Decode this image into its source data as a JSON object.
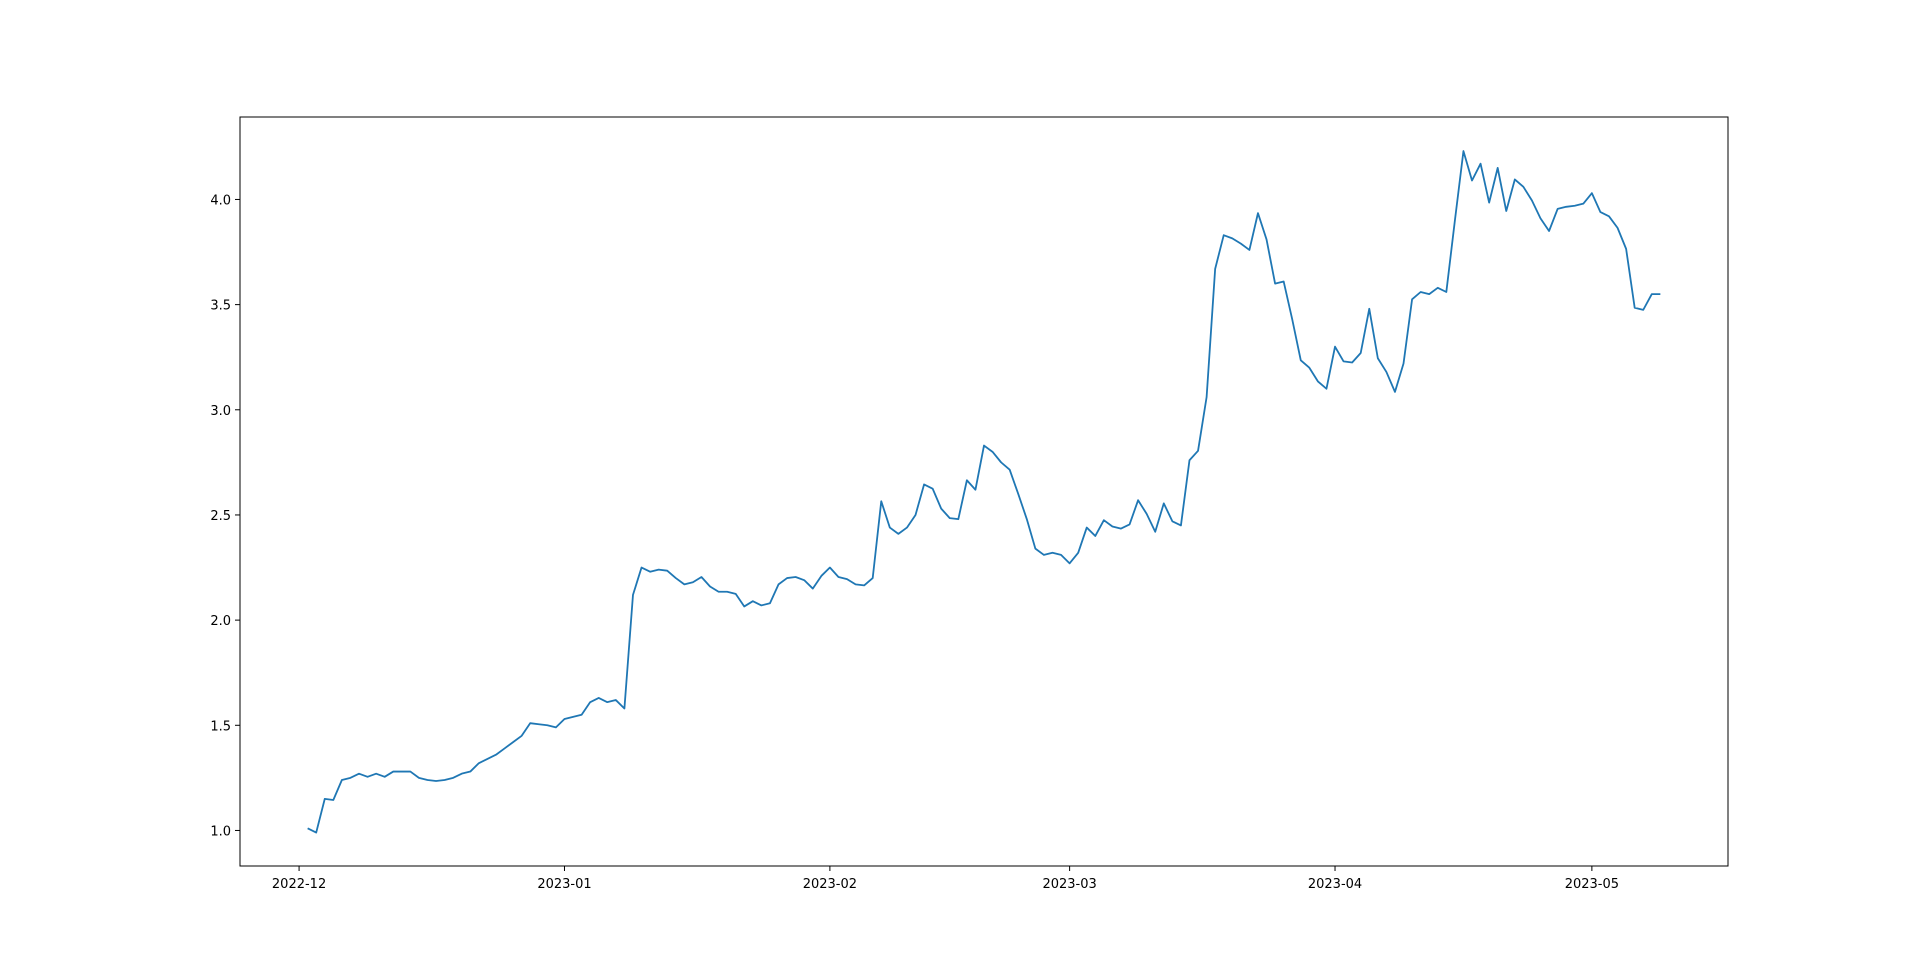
{
  "chart_data": {
    "type": "line",
    "x": [
      19328,
      19329,
      19330,
      19331,
      19332,
      19333,
      19334,
      19335,
      19336,
      19337,
      19338,
      19339,
      19340,
      19341,
      19342,
      19343,
      19344,
      19345,
      19346,
      19347,
      19348,
      19349,
      19350,
      19351,
      19352,
      19353,
      19354,
      19355,
      19356,
      19357,
      19358,
      19359,
      19360,
      19361,
      19362,
      19363,
      19364,
      19365,
      19366,
      19367,
      19368,
      19369,
      19370,
      19371,
      19372,
      19373,
      19374,
      19375,
      19376,
      19377,
      19378,
      19379,
      19380,
      19381,
      19382,
      19383,
      19384,
      19385,
      19386,
      19387,
      19388,
      19389,
      19390,
      19391,
      19392,
      19393,
      19394,
      19395,
      19396,
      19397,
      19398,
      19399,
      19400,
      19401,
      19402,
      19403,
      19404,
      19405,
      19406,
      19407,
      19408,
      19409,
      19410,
      19411,
      19412,
      19413,
      19414,
      19415,
      19416,
      19417,
      19418,
      19419,
      19420,
      19421,
      19422,
      19423,
      19424,
      19425,
      19426,
      19427,
      19428,
      19429,
      19430,
      19431,
      19432,
      19433,
      19434,
      19435,
      19436,
      19437,
      19438,
      19439,
      19440,
      19441,
      19442,
      19443,
      19444,
      19445,
      19446,
      19447,
      19448,
      19449,
      19450,
      19451,
      19452,
      19453,
      19454,
      19455,
      19456,
      19457,
      19458,
      19459,
      19460,
      19461,
      19462,
      19463,
      19464,
      19465,
      19466,
      19467,
      19468,
      19469,
      19470,
      19471,
      19472,
      19473,
      19474,
      19475,
      19476,
      19477,
      19478,
      19479,
      19480,
      19481,
      19482,
      19483,
      19484,
      19485,
      19486
    ],
    "values": [
      1.01,
      0.99,
      1.15,
      1.145,
      1.24,
      1.25,
      1.27,
      1.255,
      1.27,
      1.255,
      1.28,
      1.28,
      1.28,
      1.25,
      1.24,
      1.235,
      1.24,
      1.25,
      1.27,
      1.28,
      1.32,
      1.34,
      1.36,
      1.39,
      1.42,
      1.45,
      1.51,
      1.505,
      1.5,
      1.49,
      1.53,
      1.54,
      1.55,
      1.61,
      1.63,
      1.61,
      1.62,
      1.58,
      2.12,
      2.25,
      2.23,
      2.24,
      2.235,
      2.2,
      2.17,
      2.18,
      2.205,
      2.16,
      2.135,
      2.135,
      2.125,
      2.065,
      2.09,
      2.07,
      2.08,
      2.17,
      2.2,
      2.205,
      2.19,
      2.15,
      2.21,
      2.25,
      2.205,
      2.195,
      2.17,
      2.165,
      2.2,
      2.565,
      2.44,
      2.41,
      2.44,
      2.5,
      2.645,
      2.625,
      2.53,
      2.485,
      2.48,
      2.665,
      2.62,
      2.83,
      2.8,
      2.75,
      2.715,
      2.6,
      2.48,
      2.34,
      2.31,
      2.32,
      2.31,
      2.27,
      2.32,
      2.44,
      2.4,
      2.475,
      2.445,
      2.435,
      2.455,
      2.57,
      2.505,
      2.42,
      2.555,
      2.47,
      2.45,
      2.76,
      2.805,
      3.06,
      3.67,
      3.83,
      3.815,
      3.79,
      3.76,
      3.935,
      3.81,
      3.6,
      3.61,
      3.43,
      3.235,
      3.2,
      3.135,
      3.1,
      3.3,
      3.23,
      3.225,
      3.27,
      3.48,
      3.245,
      3.18,
      3.085,
      3.22,
      3.525,
      3.56,
      3.55,
      3.58,
      3.56,
      3.9,
      4.23,
      4.09,
      4.17,
      3.985,
      4.15,
      3.945,
      4.095,
      4.06,
      3.995,
      3.91,
      3.85,
      3.955,
      3.965,
      3.97,
      3.98,
      4.03,
      3.94,
      3.92,
      3.865,
      3.765,
      3.485,
      3.475,
      3.55,
      3.55
    ],
    "color": "#1f77b4",
    "xlim": [
      19320.1,
      19493.9
    ],
    "xticks": [
      {
        "value": 19327,
        "label": "2022-12"
      },
      {
        "value": 19358,
        "label": "2023-01"
      },
      {
        "value": 19389,
        "label": "2023-02"
      },
      {
        "value": 19417,
        "label": "2023-03"
      },
      {
        "value": 19448,
        "label": "2023-04"
      },
      {
        "value": 19478,
        "label": "2023-05"
      }
    ],
    "ylim": [
      0.831,
      4.392
    ],
    "yticks": [
      {
        "value": 1,
        "label": "1.0"
      },
      {
        "value": 1.5,
        "label": "1.5"
      },
      {
        "value": 2,
        "label": "2.0"
      },
      {
        "value": 2.5,
        "label": "2.5"
      },
      {
        "value": 3,
        "label": "3.0"
      },
      {
        "value": 3.5,
        "label": "3.5"
      },
      {
        "value": 4,
        "label": "4.0"
      }
    ],
    "grid": false
  }
}
